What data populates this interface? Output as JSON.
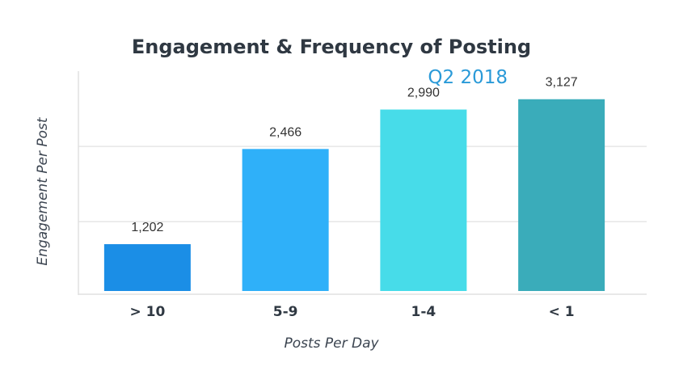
{
  "chart_data": {
    "type": "bar",
    "title": "Engagement & Frequency of Posting",
    "subtitle": "Q2 2018",
    "xlabel": "Posts Per Day",
    "ylabel": "Engagement Per Post",
    "categories": [
      "> 10",
      "5-9",
      "1-4",
      "< 1"
    ],
    "values": [
      1202,
      2466,
      2990,
      3127
    ],
    "value_labels": [
      "1,202",
      "2,466",
      "2,990",
      "3,127"
    ],
    "ylim": [
      580,
      3500
    ],
    "gridlines": [
      1500,
      2500
    ],
    "colors": [
      "#1b8ee6",
      "#2fb0f9",
      "#47dce9",
      "#3aacba"
    ]
  }
}
